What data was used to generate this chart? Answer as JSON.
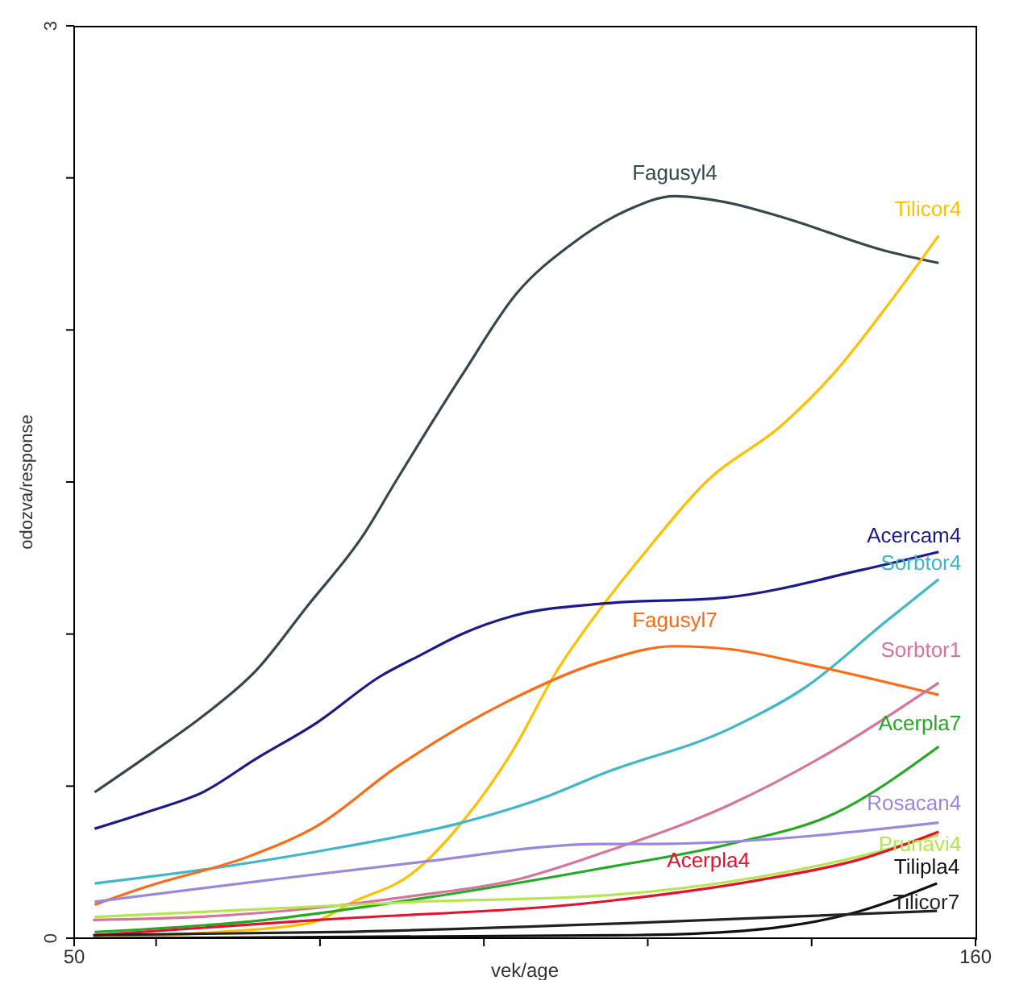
{
  "chart_data": {
    "type": "line",
    "xlabel": "vek/age",
    "ylabel": "odozva/response",
    "xlim": [
      50,
      160
    ],
    "ylim": [
      0,
      3
    ],
    "xticks": [
      50,
      {
        "value": 60,
        "label": null
      },
      {
        "value": 80,
        "label": null
      },
      {
        "value": 100,
        "label": null
      },
      {
        "value": 120,
        "label": null
      },
      {
        "value": 140,
        "label": null
      },
      160
    ],
    "yticks": [
      0,
      {
        "value": 0.5,
        "label": null
      },
      {
        "value": 1,
        "label": null
      },
      {
        "value": 1.5,
        "label": null
      },
      {
        "value": 2,
        "label": null
      },
      {
        "value": 2.5,
        "label": null
      },
      3
    ],
    "marker": "none",
    "line_style": "solid",
    "series": [
      {
        "name": "Fagusyl4",
        "color": "#37474f",
        "x": [
          52.5,
          59.5,
          65.7,
          72.2,
          78.4,
          85.4,
          89.2,
          97.3,
          104,
          110.6,
          117.2,
          123.3,
          129.5,
          136.5,
          149,
          155.5
        ],
        "values": [
          0.48,
          0.61,
          0.73,
          0.88,
          1.09,
          1.33,
          1.5,
          1.85,
          2.12,
          2.28,
          2.39,
          2.44,
          2.42,
          2.37,
          2.26,
          2.22
        ]
      },
      {
        "name": "Tilicor4",
        "color": "#ffc000",
        "x": [
          52.3,
          67.4,
          78.8,
          84.1,
          91.1,
          97.3,
          103.6,
          108.7,
          114.4,
          119.1,
          127.1,
          136.5,
          142.8,
          149.8,
          155.5
        ],
        "values": [
          0,
          0.02,
          0.05,
          0.12,
          0.21,
          0.38,
          0.62,
          0.87,
          1.09,
          1.25,
          1.5,
          1.69,
          1.86,
          2.1,
          2.31
        ]
      },
      {
        "name": "Acercam4",
        "color": "#1a1a8c",
        "x": [
          52.5,
          59.5,
          65.7,
          72.2,
          79.7,
          87.3,
          92.2,
          97.3,
          103.6,
          114.4,
          129.5,
          146,
          155.5
        ],
        "values": [
          0.36,
          0.42,
          0.48,
          0.59,
          0.71,
          0.86,
          0.93,
          1.0,
          1.06,
          1.1,
          1.12,
          1.21,
          1.27
        ]
      },
      {
        "name": "Sorbtor4",
        "color": "#3fb6c9",
        "x": [
          52.5,
          67,
          82.8,
          97.3,
          108.1,
          114.4,
          130.1,
          139.5,
          149,
          155.5
        ],
        "values": [
          0.18,
          0.23,
          0.3,
          0.38,
          0.47,
          0.54,
          0.69,
          0.83,
          1.04,
          1.18
        ]
      },
      {
        "name": "Fagusyl7",
        "color": "#ff6a13",
        "x": [
          52.5,
          58.9,
          71.4,
          79.7,
          89.2,
          103,
          114.4,
          123.3,
          130.1,
          139.5,
          155.5
        ],
        "values": [
          0.11,
          0.17,
          0.27,
          0.37,
          0.56,
          0.78,
          0.91,
          0.96,
          0.95,
          0.9,
          0.8
        ]
      },
      {
        "name": "Sorbtor1",
        "color": "#d9739a",
        "x": [
          52.3,
          65.1,
          79.7,
          91.7,
          103.6,
          114.4,
          130.1,
          142.8,
          155.5
        ],
        "values": [
          0.06,
          0.07,
          0.1,
          0.14,
          0.19,
          0.28,
          0.44,
          0.62,
          0.84
        ]
      },
      {
        "name": "Acerpla7",
        "color": "#22aa22",
        "x": [
          52.5,
          73.3,
          92.2,
          114.4,
          130.1,
          142.8,
          155.5
        ],
        "values": [
          0.02,
          0.06,
          0.13,
          0.23,
          0.31,
          0.41,
          0.63
        ]
      },
      {
        "name": "Rosacan4",
        "color": "#9b87e0",
        "x": [
          52.5,
          73.3,
          92.2,
          114.4,
          120.6,
          155.5
        ],
        "values": [
          0.12,
          0.19,
          0.25,
          0.31,
          0.31,
          0.38
        ]
      },
      {
        "name": "Prunavi4",
        "color": "#b5e550",
        "x": [
          52.5,
          92.2,
          114.4,
          133.3,
          146,
          155.5
        ],
        "values": [
          0.07,
          0.12,
          0.14,
          0.2,
          0.27,
          0.34
        ]
      },
      {
        "name": "Acerpla4",
        "color": "#e8112d",
        "x": [
          52.5,
          79.7,
          114.4,
          133.3,
          146,
          155.5
        ],
        "values": [
          0.01,
          0.06,
          0.12,
          0.19,
          0.26,
          0.35
        ]
      },
      {
        "name": "Tilipla4",
        "color": "#111111",
        "x": [
          52.3,
          118.2,
          129.5,
          137.1,
          144.7,
          155.3
        ],
        "values": [
          0,
          0.01,
          0.02,
          0.04,
          0.08,
          0.18
        ]
      },
      {
        "name": "Tilicor7",
        "color": "#222222",
        "x": [
          52.3,
          81.8,
          118.2,
          155.3
        ],
        "values": [
          0.01,
          0.02,
          0.05,
          0.09
        ]
      }
    ]
  }
}
